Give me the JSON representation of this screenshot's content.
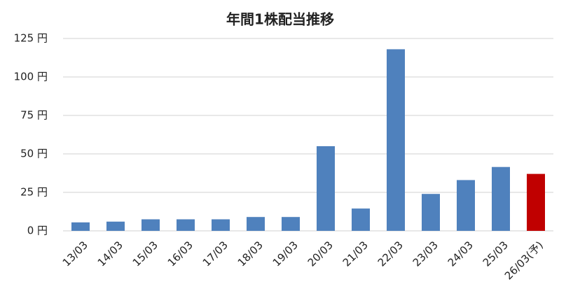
{
  "chart_data": {
    "type": "bar",
    "title": "年間1株配当推移",
    "categories": [
      "13/03",
      "14/03",
      "15/03",
      "16/03",
      "17/03",
      "18/03",
      "19/03",
      "20/03",
      "21/03",
      "22/03",
      "23/03",
      "24/03",
      "25/03",
      "26/03(予)"
    ],
    "values": [
      5.5,
      6,
      7.5,
      7.5,
      7.5,
      9,
      9,
      55,
      14.5,
      118,
      24,
      33,
      41.5,
      37
    ],
    "colors": [
      "#4f81bd",
      "#4f81bd",
      "#4f81bd",
      "#4f81bd",
      "#4f81bd",
      "#4f81bd",
      "#4f81bd",
      "#4f81bd",
      "#4f81bd",
      "#4f81bd",
      "#4f81bd",
      "#4f81bd",
      "#4f81bd",
      "#c00000"
    ],
    "ylim": [
      0,
      125
    ],
    "yticks": [
      {
        "value": 0,
        "label": "0 円"
      },
      {
        "value": 25,
        "label": "25 円"
      },
      {
        "value": 50,
        "label": "50 円"
      },
      {
        "value": 75,
        "label": "75 円"
      },
      {
        "value": 100,
        "label": "100 円"
      },
      {
        "value": 125,
        "label": "125 円"
      }
    ],
    "grid": true
  }
}
